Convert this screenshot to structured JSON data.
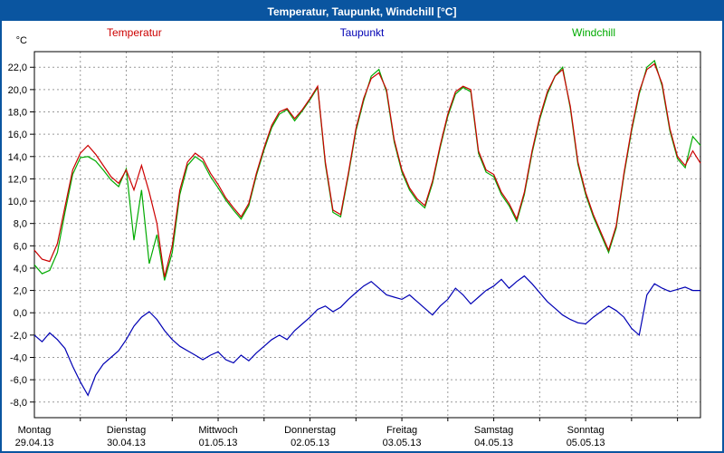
{
  "window": {
    "title": "Temperatur, Taupunkt, Windchill [°C]",
    "titlebar_color": "#0a55a0",
    "border_color": "#0a55a0"
  },
  "chart_data": {
    "type": "line",
    "title": "Temperatur, Taupunkt, Windchill [°C]",
    "legend_position": "top",
    "grid": true,
    "grid_color": "#9a9a9a",
    "sample_interval_hours": 2,
    "draw_order": [
      2,
      0,
      1
    ],
    "y_axis": {
      "unit": "°C",
      "min": -8,
      "max": 22,
      "step": 2,
      "tick_labels": [
        "22,0",
        "20,0",
        "18,0",
        "16,0",
        "14,0",
        "12,0",
        "10,0",
        "8,0",
        "6,0",
        "4,0",
        "2,0",
        "0,0",
        "-2,0",
        "-4,0",
        "-6,0",
        "-8,0"
      ]
    },
    "x_axis": {
      "hours_span": 174,
      "gridline_every_hours": 12,
      "days": [
        {
          "name": "Montag",
          "date": "29.04.13"
        },
        {
          "name": "Dienstag",
          "date": "30.04.13"
        },
        {
          "name": "Mittwoch",
          "date": "01.05.13"
        },
        {
          "name": "Donnerstag",
          "date": "02.05.13"
        },
        {
          "name": "Freitag",
          "date": "03.05.13"
        },
        {
          "name": "Samstag",
          "date": "04.05.13"
        },
        {
          "name": "Sonntag",
          "date": "05.05.13"
        }
      ]
    },
    "series": [
      {
        "name": "Temperatur",
        "color": "#cc0000",
        "values": [
          5.6,
          4.8,
          4.6,
          6.2,
          9.5,
          12.8,
          14.3,
          15.0,
          14.2,
          13.2,
          12.2,
          11.6,
          12.8,
          11.0,
          13.2,
          10.8,
          8.0,
          3.2,
          6.0,
          11.0,
          13.5,
          14.3,
          13.8,
          12.5,
          11.5,
          10.3,
          9.4,
          8.6,
          9.8,
          12.5,
          14.8,
          16.8,
          18.0,
          18.3,
          17.4,
          18.2,
          19.2,
          20.3,
          13.5,
          9.2,
          8.8,
          12.5,
          16.5,
          19.2,
          21.0,
          21.5,
          20.0,
          15.5,
          12.8,
          11.2,
          10.2,
          9.6,
          11.8,
          15.0,
          17.8,
          19.8,
          20.3,
          20.0,
          14.5,
          12.8,
          12.4,
          10.8,
          9.8,
          8.4,
          10.8,
          14.5,
          17.5,
          19.8,
          21.2,
          21.8,
          18.5,
          13.5,
          10.8,
          8.8,
          7.2,
          5.6,
          7.8,
          12.5,
          16.5,
          19.8,
          21.8,
          22.3,
          20.5,
          16.5,
          14.0,
          13.2,
          14.5,
          13.4
        ]
      },
      {
        "name": "Taupunkt",
        "color": "#0000b4",
        "values": [
          -2.0,
          -2.6,
          -1.8,
          -2.4,
          -3.2,
          -4.8,
          -6.2,
          -7.4,
          -5.6,
          -4.6,
          -4.0,
          -3.4,
          -2.4,
          -1.2,
          -0.4,
          0.1,
          -0.6,
          -1.6,
          -2.4,
          -3.0,
          -3.4,
          -3.8,
          -4.2,
          -3.8,
          -3.5,
          -4.2,
          -4.5,
          -3.8,
          -4.3,
          -3.6,
          -3.0,
          -2.4,
          -2.0,
          -2.4,
          -1.6,
          -1.0,
          -0.4,
          0.3,
          0.6,
          0.1,
          0.5,
          1.2,
          1.8,
          2.4,
          2.8,
          2.2,
          1.6,
          1.4,
          1.2,
          1.6,
          1.0,
          0.4,
          -0.2,
          0.6,
          1.2,
          2.2,
          1.6,
          0.8,
          1.4,
          2.0,
          2.4,
          3.0,
          2.2,
          2.8,
          3.3,
          2.6,
          1.8,
          1.0,
          0.4,
          -0.2,
          -0.6,
          -0.9,
          -1.0,
          -0.4,
          0.1,
          0.6,
          0.2,
          -0.4,
          -1.4,
          -2.0,
          1.6,
          2.6,
          2.2,
          1.9,
          2.1,
          2.3,
          2.0,
          2.0
        ]
      },
      {
        "name": "Windchill",
        "color": "#00aa00",
        "values": [
          4.3,
          3.5,
          3.8,
          5.4,
          9.0,
          12.4,
          13.9,
          14.0,
          13.6,
          12.8,
          11.9,
          11.3,
          12.9,
          6.5,
          11.0,
          4.4,
          7.0,
          2.9,
          5.4,
          10.6,
          13.2,
          14.0,
          13.5,
          12.2,
          11.2,
          10.1,
          9.2,
          8.4,
          9.6,
          12.3,
          14.6,
          16.6,
          17.8,
          18.2,
          17.2,
          18.1,
          19.1,
          20.2,
          13.3,
          9.0,
          8.6,
          12.3,
          16.3,
          19.0,
          21.2,
          21.8,
          19.8,
          15.3,
          12.6,
          11.0,
          10.0,
          9.4,
          11.6,
          14.8,
          17.6,
          19.6,
          20.2,
          19.8,
          14.3,
          12.6,
          12.2,
          10.6,
          9.6,
          8.2,
          10.6,
          14.3,
          17.3,
          19.6,
          21.2,
          22.0,
          18.3,
          13.3,
          10.6,
          8.6,
          7.0,
          5.4,
          7.6,
          12.3,
          16.3,
          19.6,
          22.0,
          22.6,
          20.3,
          16.3,
          13.8,
          13.0,
          15.8,
          15.0
        ]
      }
    ]
  }
}
